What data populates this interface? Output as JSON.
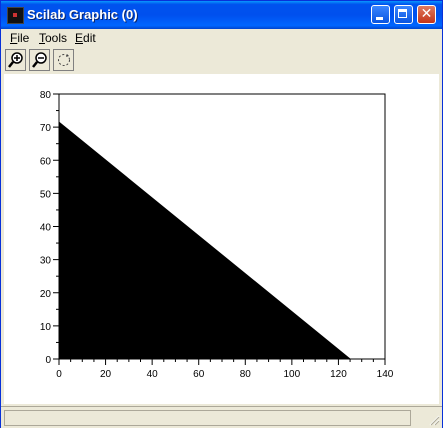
{
  "window": {
    "title": "Scilab Graphic (0)"
  },
  "menu": {
    "items": [
      "File",
      "Tools",
      "Edit"
    ]
  },
  "toolbar": {
    "buttons": [
      "zoom-in-icon",
      "zoom-out-icon",
      "rotate-icon"
    ]
  },
  "chart_data": {
    "type": "area",
    "title": "",
    "xlabel": "",
    "ylabel": "",
    "xlim": [
      0,
      140
    ],
    "ylim": [
      0,
      80
    ],
    "x_ticks": [
      "0",
      "20",
      "40",
      "60",
      "80",
      "100",
      "120",
      "140"
    ],
    "y_ticks": [
      "0",
      "10",
      "20",
      "30",
      "40",
      "50",
      "60",
      "70",
      "80"
    ],
    "series": [
      {
        "x": [
          0,
          125
        ],
        "y": [
          71.5,
          0
        ],
        "fill": "#000000"
      }
    ],
    "grid": false
  }
}
